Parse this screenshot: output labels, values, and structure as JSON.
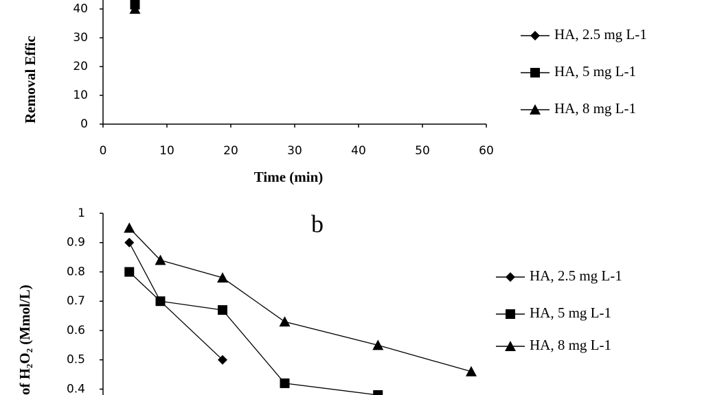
{
  "chart_data": [
    {
      "type": "line",
      "y_label": "Removal  Effic",
      "x_label": "Time (min)",
      "x": [
        5
      ],
      "xlim": [
        0,
        60
      ],
      "xticks": [
        0,
        10,
        20,
        30,
        40,
        50,
        60
      ],
      "ylim": [
        0,
        43
      ],
      "yticks": [
        0,
        10,
        20,
        30,
        40
      ],
      "series": [
        {
          "name": "HA, 2.5 mg L-1",
          "color": "#000000",
          "marker": "diamond",
          "values": [
            null
          ]
        },
        {
          "name": "HA, 5 mg L-1",
          "color": "#000000",
          "marker": "square",
          "values": [
            41.5
          ]
        },
        {
          "name": "HA, 8 mg L-1",
          "color": "#000000",
          "marker": "triangle",
          "values": [
            40
          ]
        }
      ]
    },
    {
      "type": "line",
      "title": "b",
      "y_label": "of H₂O₂ (Mmol/L)",
      "x": [
        5,
        10,
        20,
        30,
        45,
        60
      ],
      "xlim": [
        0,
        60
      ],
      "ylim": [
        0.38,
        1
      ],
      "yticks": [
        1,
        0.9,
        0.8,
        0.7,
        0.6,
        0.5,
        0.4
      ],
      "series": [
        {
          "name": "HA, 2.5 mg L-1",
          "color": "#000000",
          "marker": "diamond",
          "values": [
            0.9,
            0.7,
            0.5,
            null,
            null,
            null
          ]
        },
        {
          "name": "HA, 5 mg L-1",
          "color": "#000000",
          "marker": "square",
          "values": [
            0.8,
            0.7,
            0.67,
            0.42,
            0.38,
            null
          ]
        },
        {
          "name": "HA, 8 mg L-1",
          "color": "#000000",
          "marker": "triangle",
          "values": [
            0.95,
            0.84,
            0.78,
            0.63,
            0.55,
            0.46
          ]
        }
      ]
    }
  ]
}
